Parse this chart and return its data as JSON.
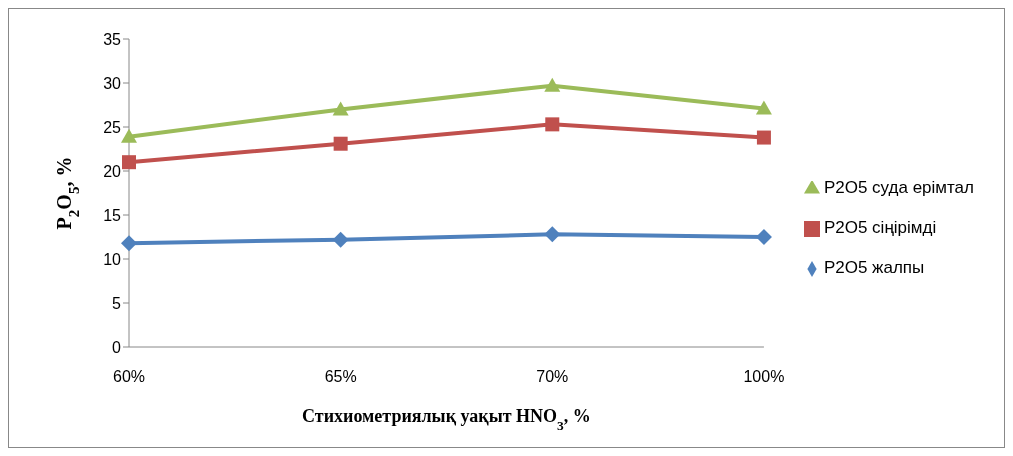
{
  "chart_data": {
    "type": "line",
    "xlabel": "Стихиометриялық уақыт  HNO$_{3}$, %",
    "ylabel": "P$_{2}$O$_{5}$, %",
    "categories": [
      "60%",
      "65%",
      "70%",
      "100%"
    ],
    "series": [
      {
        "name": "P2O5 суда ерімтал",
        "color": "#9bbb59",
        "marker": "triangle",
        "values": [
          23.9,
          27.0,
          29.7,
          27.1
        ]
      },
      {
        "name": "P2O5 сіңірімді",
        "color": "#c0504d",
        "marker": "square",
        "values": [
          21.0,
          23.1,
          25.3,
          23.8
        ]
      },
      {
        "name": "P2O5 жалпы",
        "color": "#4f81bd",
        "marker": "diamond",
        "values": [
          11.8,
          12.2,
          12.8,
          12.5
        ]
      }
    ],
    "ylim": [
      0,
      35
    ],
    "yticks": [
      0,
      5,
      10,
      15,
      20,
      25,
      30,
      35
    ],
    "grid": false,
    "legend": "right"
  }
}
